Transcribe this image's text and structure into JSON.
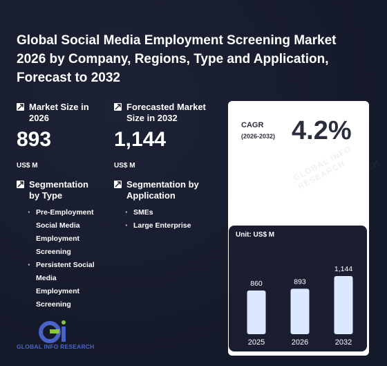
{
  "title": "Global Social Media Employment Screening Market 2026 by Company, Regions, Type and Application, Forecast to 2032",
  "market_size": {
    "label": "Market Size in 2026",
    "value": "893",
    "unit": "US$ M"
  },
  "forecast_size": {
    "label": "Forecasted Market Size in 2032",
    "value": "1,144",
    "unit": "US$ M"
  },
  "segmentation_type": {
    "label": "Segmentation by Type",
    "items": [
      "Pre-Employment Social Media Employment Screening",
      "Persistent Social Media Employment Screening"
    ]
  },
  "segmentation_application": {
    "label": "Segmentation by Application",
    "items": [
      "SMEs",
      "Large Enterprise"
    ]
  },
  "cagr": {
    "label": "CAGR",
    "period": "(2026-2032)",
    "value": "4.2%"
  },
  "logo": {
    "text": "GLOBAL INFO RESEARCH"
  },
  "colors": {
    "background": "#161a2c",
    "bar": "#dbe8ff",
    "card": "#ffffff",
    "chart_panel": "#1a1e30",
    "logo_blue": "#4a63c8",
    "logo_green": "#8cc63f"
  },
  "chart_data": {
    "type": "bar",
    "unit_label": "Unit: US$ M",
    "categories": [
      "2025",
      "2026",
      "2032"
    ],
    "values": [
      860,
      893,
      1144
    ],
    "value_labels": [
      "860",
      "893",
      "1,144"
    ],
    "title": "",
    "xlabel": "",
    "ylabel": ""
  }
}
